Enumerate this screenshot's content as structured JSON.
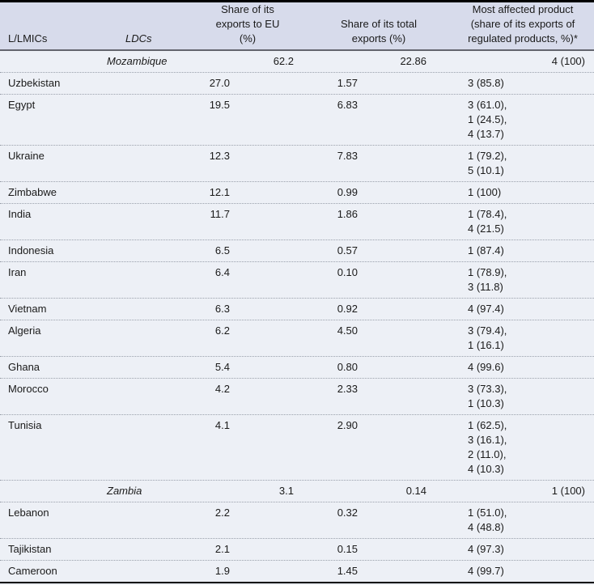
{
  "table": {
    "headers": {
      "llmics": "L/LMICs",
      "ldcs": "LDCs",
      "eu_share": "Share of its\nexports to EU\n(%)",
      "total_share": "Share of its total\nexports (%)",
      "most_affected": "Most affected product\n(share of its exports of\nregulated products, %)*"
    },
    "rows": [
      {
        "ldc_country": "Mozambique",
        "eu_share": "62.2",
        "total_share": "22.86",
        "most_affected": "4 (100)"
      },
      {
        "country": "Uzbekistan",
        "eu_share": "27.0",
        "total_share": "1.57",
        "most_affected": "3 (85.8)"
      },
      {
        "country": "Egypt",
        "eu_share": "19.5",
        "total_share": "6.83",
        "most_affected": "3 (61.0),\n1 (24.5),\n4 (13.7)"
      },
      {
        "country": "Ukraine",
        "eu_share": "12.3",
        "total_share": "7.83",
        "most_affected": "1 (79.2),\n5 (10.1)"
      },
      {
        "country": "Zimbabwe",
        "eu_share": "12.1",
        "total_share": "0.99",
        "most_affected": "1 (100)"
      },
      {
        "country": "India",
        "eu_share": "11.7",
        "total_share": "1.86",
        "most_affected": "1 (78.4),\n4 (21.5)"
      },
      {
        "country": "Indonesia",
        "eu_share": "6.5",
        "total_share": "0.57",
        "most_affected": "1 (87.4)"
      },
      {
        "country": "Iran",
        "eu_share": "6.4",
        "total_share": "0.10",
        "most_affected": "1 (78.9),\n3 (11.8)"
      },
      {
        "country": "Vietnam",
        "eu_share": "6.3",
        "total_share": "0.92",
        "most_affected": "4 (97.4)"
      },
      {
        "country": "Algeria",
        "eu_share": "6.2",
        "total_share": "4.50",
        "most_affected": "3 (79.4),\n1 (16.1)"
      },
      {
        "country": "Ghana",
        "eu_share": "5.4",
        "total_share": "0.80",
        "most_affected": "4 (99.6)"
      },
      {
        "country": "Morocco",
        "eu_share": "4.2",
        "total_share": "2.33",
        "most_affected": "3 (73.3),\n1 (10.3)"
      },
      {
        "country": "Tunisia",
        "eu_share": "4.1",
        "total_share": "2.90",
        "most_affected": "1 (62.5),\n3 (16.1),\n2 (11.0),\n4 (10.3)"
      },
      {
        "ldc_country": "Zambia",
        "eu_share": "3.1",
        "total_share": "0.14",
        "most_affected": "1 (100)"
      },
      {
        "country": "Lebanon",
        "eu_share": "2.2",
        "total_share": "0.32",
        "most_affected": "1 (51.0),\n4 (48.8)"
      },
      {
        "country": "Tajikistan",
        "eu_share": "2.1",
        "total_share": "0.15",
        "most_affected": "4 (97.3)"
      },
      {
        "country": "Cameroon",
        "eu_share": "1.9",
        "total_share": "1.45",
        "most_affected": "4 (99.7)"
      }
    ],
    "colors": {
      "header_bg": "#d7dbeb",
      "body_bg": "#edf0f6",
      "top_bottom_rule": "#000000",
      "header_rule": "#63656e",
      "row_divider_dotted": "#9aa0ab",
      "text": "#1a1a1a"
    }
  }
}
